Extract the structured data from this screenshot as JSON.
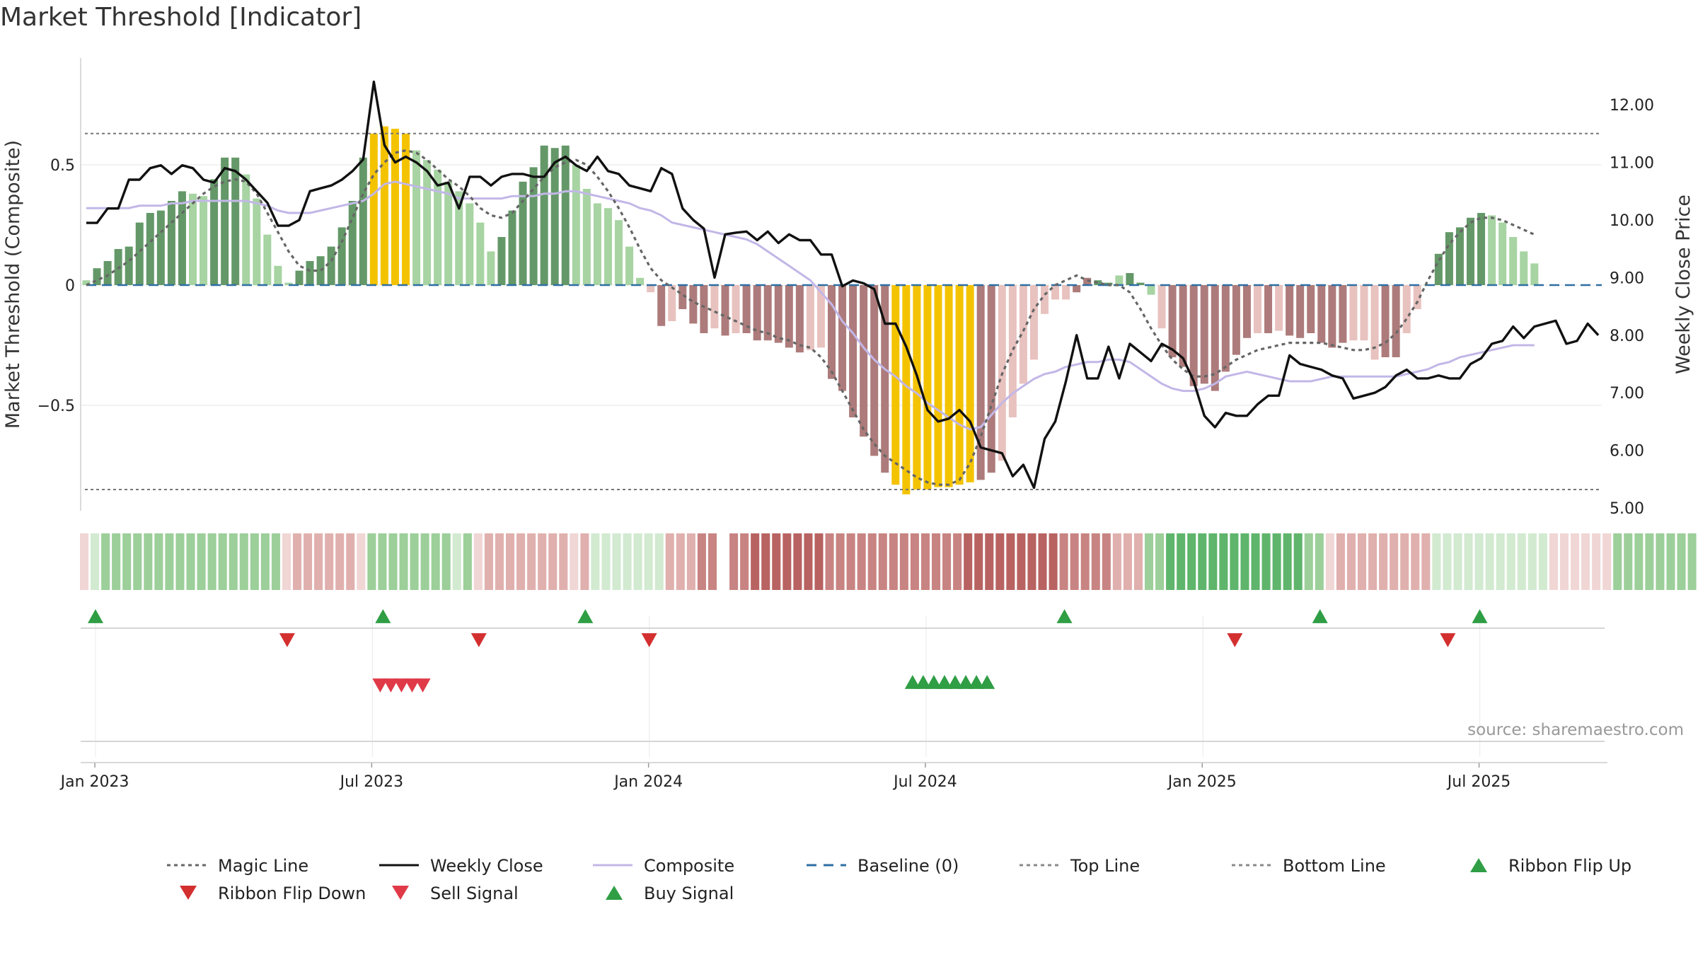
{
  "chart_data": {
    "type": "bar",
    "title": "Market Threshold [Indicator]",
    "ylabel": "Market Threshold (Composite)",
    "ylabel_right": "Weekly Close Price",
    "source": "source: sharemaestro.com",
    "ylim": [
      -0.95,
      0.95
    ],
    "ylim_right": [
      5.0,
      12.4
    ],
    "yticks": [
      {
        "value": 0.5,
        "label": "0.5"
      },
      {
        "value": 0,
        "label": "0"
      },
      {
        "value": -0.5,
        "label": "−0.5"
      }
    ],
    "yticks_right": [
      {
        "value": 12,
        "label": "12.00"
      },
      {
        "value": 11,
        "label": "11.00"
      },
      {
        "value": 10,
        "label": "10.00"
      },
      {
        "value": 9,
        "label": "9.00"
      },
      {
        "value": 8,
        "label": "8.00"
      },
      {
        "value": 7,
        "label": "7.00"
      },
      {
        "value": 6,
        "label": "6.00"
      },
      {
        "value": 5,
        "label": "5.00"
      }
    ],
    "xticks": [
      {
        "label": "Jan 2023",
        "week": 1
      },
      {
        "label": "Jul 2023",
        "week": 27
      },
      {
        "label": "Jan 2024",
        "week": 53
      },
      {
        "label": "Jul 2024",
        "week": 79
      },
      {
        "label": "Jan 2025",
        "week": 105
      },
      {
        "label": "Jul 2025",
        "week": 131
      }
    ],
    "top_line": 0.63,
    "bottom_line": -0.85,
    "composite_bars": [
      0.02,
      0.07,
      0.1,
      0.15,
      0.16,
      0.26,
      0.3,
      0.31,
      0.35,
      0.39,
      0.38,
      0.37,
      0.44,
      0.53,
      0.53,
      0.46,
      0.36,
      0.21,
      0.08,
      0.01,
      0.06,
      0.1,
      0.12,
      0.16,
      0.24,
      0.35,
      0.53,
      0.63,
      0.66,
      0.65,
      0.63,
      0.56,
      0.52,
      0.48,
      0.43,
      0.39,
      0.34,
      0.26,
      0.14,
      0.2,
      0.31,
      0.43,
      0.49,
      0.58,
      0.57,
      0.58,
      0.5,
      0.4,
      0.34,
      0.32,
      0.27,
      0.16,
      0.03,
      -0.03,
      -0.17,
      -0.15,
      -0.1,
      -0.16,
      -0.2,
      -0.18,
      -0.21,
      -0.2,
      -0.2,
      -0.23,
      -0.23,
      -0.24,
      -0.26,
      -0.28,
      -0.27,
      -0.26,
      -0.39,
      -0.44,
      -0.55,
      -0.63,
      -0.71,
      -0.78,
      -0.83,
      -0.87,
      -0.85,
      -0.85,
      -0.84,
      -0.84,
      -0.83,
      -0.82,
      -0.81,
      -0.78,
      -0.73,
      -0.55,
      -0.41,
      -0.31,
      -0.12,
      -0.06,
      -0.06,
      -0.03,
      0.03,
      0.02,
      0.01,
      0.04,
      0.05,
      0.01,
      -0.04,
      -0.18,
      -0.3,
      -0.34,
      -0.42,
      -0.41,
      -0.44,
      -0.36,
      -0.29,
      -0.22,
      -0.2,
      -0.2,
      -0.19,
      -0.21,
      -0.22,
      -0.2,
      -0.24,
      -0.26,
      -0.24,
      -0.23,
      -0.23,
      -0.31,
      -0.3,
      -0.3,
      -0.2,
      -0.1,
      0.0,
      0.13,
      0.22,
      0.24,
      0.28,
      0.3,
      0.29,
      0.26,
      0.2,
      0.14,
      0.09
    ],
    "composite_tiers": [
      "g2",
      "g1",
      "g1",
      "g1",
      "g1",
      "g1",
      "g1",
      "g1",
      "g1",
      "g1",
      "g2",
      "g2",
      "g1",
      "g1",
      "g1",
      "g2",
      "g2",
      "g2",
      "g2",
      "g2",
      "g1",
      "g1",
      "g1",
      "g1",
      "g1",
      "g1",
      "g1",
      "y",
      "y",
      "y",
      "y",
      "g2",
      "g2",
      "g2",
      "g2",
      "g2",
      "g2",
      "g2",
      "g2",
      "g1",
      "g1",
      "g1",
      "g1",
      "g1",
      "g1",
      "g1",
      "g2",
      "g2",
      "g2",
      "g2",
      "g2",
      "g2",
      "g2",
      "r2",
      "r1",
      "r2",
      "r1",
      "r1",
      "r1",
      "r2",
      "r1",
      "r2",
      "r1",
      "r1",
      "r1",
      "r1",
      "r1",
      "r1",
      "r2",
      "r2",
      "r1",
      "r1",
      "r1",
      "r1",
      "r1",
      "r1",
      "y",
      "y",
      "y",
      "y",
      "y",
      "y",
      "y",
      "y",
      "r1",
      "r1",
      "r2",
      "r2",
      "r2",
      "r2",
      "r2",
      "r2",
      "r2",
      "r1",
      "r1",
      "g1",
      "g1",
      "g2",
      "g1",
      "g1",
      "g2",
      "r2",
      "r1",
      "r1",
      "r1",
      "r1",
      "r1",
      "r1",
      "r1",
      "r1",
      "r2",
      "r1",
      "r2",
      "r1",
      "r1",
      "r1",
      "r1",
      "r1",
      "r1",
      "r2",
      "r2",
      "r2",
      "r1",
      "r1",
      "r2",
      "r2",
      "g2",
      "g1",
      "g1",
      "g1",
      "g1",
      "g1",
      "g2",
      "g2",
      "g2",
      "g2",
      "g2"
    ],
    "composite_line": [
      0.32,
      0.32,
      0.32,
      0.32,
      0.32,
      0.33,
      0.33,
      0.33,
      0.34,
      0.34,
      0.35,
      0.35,
      0.35,
      0.35,
      0.35,
      0.35,
      0.34,
      0.33,
      0.31,
      0.3,
      0.3,
      0.3,
      0.31,
      0.32,
      0.33,
      0.34,
      0.35,
      0.38,
      0.42,
      0.43,
      0.42,
      0.41,
      0.4,
      0.39,
      0.38,
      0.36,
      0.36,
      0.36,
      0.36,
      0.36,
      0.37,
      0.37,
      0.37,
      0.38,
      0.38,
      0.39,
      0.39,
      0.38,
      0.37,
      0.36,
      0.35,
      0.34,
      0.32,
      0.31,
      0.29,
      0.26,
      0.25,
      0.24,
      0.23,
      0.22,
      0.21,
      0.2,
      0.19,
      0.17,
      0.14,
      0.11,
      0.08,
      0.05,
      0.02,
      -0.03,
      -0.08,
      -0.15,
      -0.2,
      -0.26,
      -0.31,
      -0.35,
      -0.38,
      -0.42,
      -0.45,
      -0.49,
      -0.52,
      -0.55,
      -0.58,
      -0.6,
      -0.59,
      -0.54,
      -0.49,
      -0.45,
      -0.42,
      -0.39,
      -0.37,
      -0.36,
      -0.34,
      -0.33,
      -0.32,
      -0.32,
      -0.31,
      -0.31,
      -0.32,
      -0.35,
      -0.38,
      -0.41,
      -0.43,
      -0.44,
      -0.44,
      -0.43,
      -0.41,
      -0.38,
      -0.37,
      -0.36,
      -0.37,
      -0.38,
      -0.39,
      -0.4,
      -0.4,
      -0.4,
      -0.39,
      -0.38,
      -0.38,
      -0.38,
      -0.38,
      -0.38,
      -0.38,
      -0.38,
      -0.37,
      -0.36,
      -0.35,
      -0.33,
      -0.32,
      -0.3,
      -0.29,
      -0.28,
      -0.27,
      -0.26,
      -0.25,
      -0.25,
      -0.25
    ],
    "magic_line": [
      0.0,
      0.02,
      0.04,
      0.07,
      0.1,
      0.14,
      0.18,
      0.22,
      0.26,
      0.3,
      0.34,
      0.38,
      0.41,
      0.43,
      0.44,
      0.43,
      0.38,
      0.3,
      0.22,
      0.14,
      0.08,
      0.06,
      0.06,
      0.1,
      0.18,
      0.28,
      0.38,
      0.46,
      0.51,
      0.55,
      0.56,
      0.55,
      0.52,
      0.48,
      0.44,
      0.41,
      0.37,
      0.32,
      0.29,
      0.28,
      0.3,
      0.35,
      0.4,
      0.45,
      0.49,
      0.51,
      0.52,
      0.5,
      0.45,
      0.39,
      0.32,
      0.24,
      0.15,
      0.07,
      0.02,
      -0.01,
      -0.04,
      -0.07,
      -0.09,
      -0.11,
      -0.13,
      -0.15,
      -0.17,
      -0.19,
      -0.2,
      -0.22,
      -0.23,
      -0.25,
      -0.26,
      -0.3,
      -0.36,
      -0.44,
      -0.52,
      -0.6,
      -0.66,
      -0.71,
      -0.74,
      -0.77,
      -0.8,
      -0.82,
      -0.83,
      -0.83,
      -0.81,
      -0.74,
      -0.63,
      -0.5,
      -0.37,
      -0.27,
      -0.19,
      -0.1,
      -0.04,
      0.0,
      0.02,
      0.04,
      0.02,
      0.01,
      0.0,
      0.0,
      -0.03,
      -0.1,
      -0.18,
      -0.25,
      -0.31,
      -0.35,
      -0.38,
      -0.38,
      -0.37,
      -0.34,
      -0.31,
      -0.29,
      -0.27,
      -0.26,
      -0.25,
      -0.24,
      -0.24,
      -0.24,
      -0.24,
      -0.25,
      -0.26,
      -0.27,
      -0.27,
      -0.26,
      -0.24,
      -0.2,
      -0.14,
      -0.07,
      0.02,
      0.1,
      0.17,
      0.22,
      0.26,
      0.28,
      0.28,
      0.27,
      0.25,
      0.23,
      0.21
    ],
    "weekly_close": [
      9.95,
      9.95,
      10.2,
      10.2,
      10.7,
      10.7,
      10.9,
      10.95,
      10.8,
      10.95,
      10.9,
      10.7,
      10.65,
      10.9,
      10.85,
      10.7,
      10.5,
      10.3,
      9.9,
      9.9,
      10.0,
      10.5,
      10.55,
      10.6,
      10.7,
      10.85,
      11.05,
      12.4,
      11.3,
      11.0,
      11.1,
      11.0,
      10.85,
      10.6,
      10.65,
      10.2,
      10.75,
      10.75,
      10.6,
      10.75,
      10.8,
      10.8,
      10.75,
      10.75,
      11.0,
      11.1,
      10.95,
      10.85,
      11.1,
      10.85,
      10.8,
      10.6,
      10.55,
      10.5,
      10.9,
      10.8,
      10.2,
      10.0,
      9.85,
      9.0,
      9.75,
      9.78,
      9.8,
      9.65,
      9.8,
      9.6,
      9.75,
      9.65,
      9.65,
      9.4,
      9.4,
      8.85,
      8.95,
      8.9,
      8.8,
      8.2,
      8.2,
      7.8,
      7.3,
      6.7,
      6.5,
      6.55,
      6.7,
      6.5,
      6.05,
      6.0,
      5.95,
      5.55,
      5.75,
      5.35,
      6.2,
      6.5,
      7.2,
      8.0,
      7.25,
      7.25,
      7.8,
      7.25,
      7.85,
      7.7,
      7.55,
      7.85,
      7.75,
      7.6,
      7.2,
      6.6,
      6.4,
      6.65,
      6.6,
      6.6,
      6.8,
      6.95,
      6.95,
      7.65,
      7.5,
      7.45,
      7.4,
      7.3,
      7.25,
      6.9,
      6.95,
      7.0,
      7.1,
      7.3,
      7.4,
      7.25,
      7.25,
      7.3,
      7.25,
      7.25,
      7.5,
      7.6,
      7.85,
      7.9,
      8.15,
      7.95,
      8.15,
      8.2,
      8.25,
      7.85,
      7.9,
      8.2,
      8.0
    ],
    "ribbon_tiers": [
      -1,
      1,
      2,
      2,
      2,
      2,
      2,
      2,
      2,
      2,
      2,
      2,
      2,
      2,
      2,
      2,
      2,
      2,
      2,
      -1,
      -2,
      -2,
      -2,
      -2,
      -2,
      -2,
      -1,
      2,
      2,
      2,
      2,
      2,
      2,
      2,
      2,
      1,
      2,
      -1,
      -2,
      -2,
      -2,
      -2,
      -2,
      -2,
      -2,
      -2,
      -1,
      -2,
      1,
      1,
      1,
      1,
      1,
      1,
      1,
      -2,
      -2,
      -2,
      -3,
      -3,
      -3,
      -3,
      -3,
      -4,
      -4,
      -4,
      -4,
      -4,
      -4,
      -4,
      -3,
      -3,
      -3,
      -3,
      -3,
      -3,
      -3,
      -3,
      -3,
      -3,
      -3,
      -3,
      -3,
      -4,
      -4,
      -4,
      -4,
      -4,
      -4,
      -4,
      -4,
      -4,
      -3,
      -3,
      -3,
      -3,
      -3,
      -2,
      -2,
      -2,
      2,
      2,
      3,
      3,
      3,
      3,
      3,
      3,
      3,
      3,
      3,
      3,
      3,
      3,
      3,
      2,
      2,
      -1,
      -2,
      -2,
      -2,
      -2,
      -2,
      -2,
      -2,
      -2,
      -2,
      1,
      1,
      1,
      1,
      1,
      1,
      1,
      1,
      1,
      1,
      1,
      -1,
      -1,
      -1,
      -1,
      -1,
      -1,
      2,
      2,
      2,
      2,
      2,
      2,
      2,
      2,
      2,
      2,
      2,
      2,
      1
    ],
    "ribbon_gap_week": 60,
    "ribbon_flip_up_weeks": [
      0,
      27,
      46,
      91,
      115,
      130
    ],
    "ribbon_flip_down_weeks": [
      18,
      36,
      52,
      107,
      127
    ],
    "sell_signal_weeks": [
      27,
      28,
      29,
      30,
      31
    ],
    "buy_signal_weeks": [
      77,
      78,
      79,
      80,
      81,
      82,
      83,
      84
    ],
    "colors": {
      "g1": "#649868",
      "g2": "#a7d4a2",
      "r1": "#ad7b7b",
      "r2": "#e8c2bf",
      "y": "#f4c300",
      "weekly_close": "#111111",
      "magic_line": "#666666",
      "composite_line": "#c2b7e7",
      "baseline": "#2e6fa3",
      "threshold": "#777777",
      "flip_up": "#2f9e44",
      "flip_down": "#d32f2f",
      "sell": "#e03a48",
      "buy": "#2f9e44"
    },
    "legend": [
      {
        "label": "Magic Line",
        "kind": "dotted",
        "color": "#666666"
      },
      {
        "label": "Weekly Close",
        "kind": "solid",
        "color": "#111111"
      },
      {
        "label": "Composite",
        "kind": "solid",
        "color": "#c2b7e7"
      },
      {
        "label": "Baseline (0)",
        "kind": "dashed",
        "color": "#2e6fa3"
      },
      {
        "label": "Top Line",
        "kind": "dotted",
        "color": "#8a8a8a"
      },
      {
        "label": "Bottom Line",
        "kind": "dotted",
        "color": "#8a8a8a"
      },
      {
        "label": "Ribbon Flip Up",
        "kind": "tri-up",
        "color": "#2f9e44"
      },
      {
        "label": "Ribbon Flip Down",
        "kind": "tri-down",
        "color": "#d32f2f"
      },
      {
        "label": "Sell Signal",
        "kind": "tri-down",
        "color": "#e03a48"
      },
      {
        "label": "Buy Signal",
        "kind": "tri-up",
        "color": "#2f9e44"
      }
    ]
  }
}
